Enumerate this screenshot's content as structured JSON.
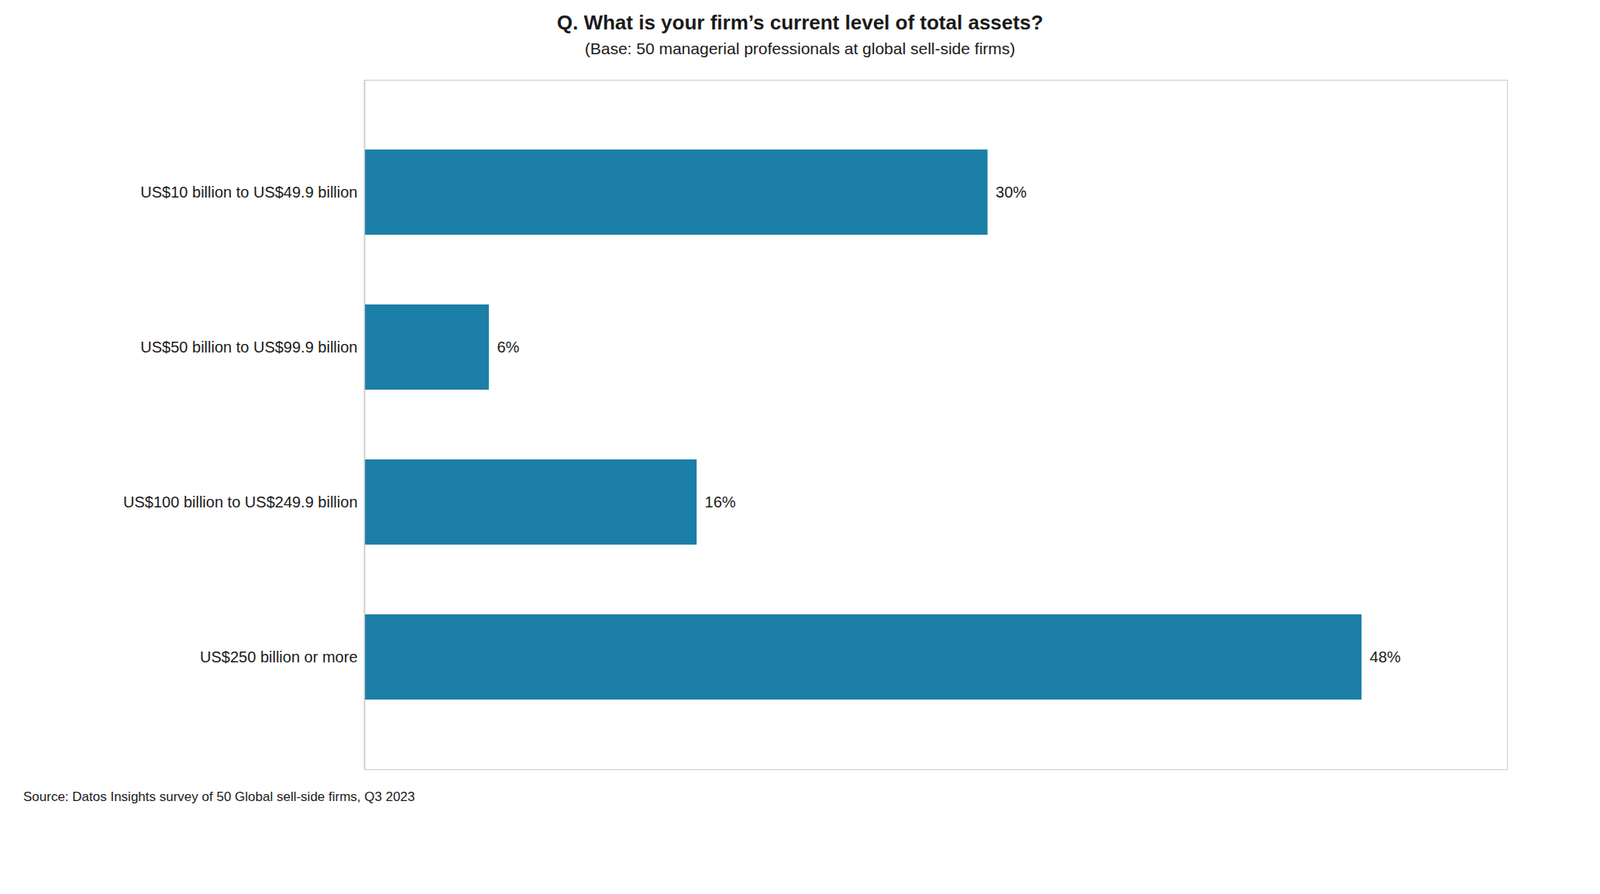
{
  "chart_data": {
    "type": "bar",
    "orientation": "horizontal",
    "title": "Q. What is your firm’s current level of total assets?",
    "subtitle": "(Base: 50 managerial professionals at global sell-side firms)",
    "source": "Source: Datos Insights survey of 50 Global sell-side firms, Q3 2023",
    "categories": [
      "US$10 billion to US$49.9 billion",
      "US$50 billion to US$99.9 billion",
      "US$100 billion to US$249.9 billion",
      "US$250 billion or more"
    ],
    "values": [
      30,
      6,
      16,
      48
    ],
    "value_labels": [
      "30%",
      "6%",
      "16%",
      "48%"
    ],
    "data_labels": true,
    "color": "#1b7fa8",
    "xlim": [
      0,
      55
    ],
    "tick_labels": "y",
    "grid": false
  }
}
